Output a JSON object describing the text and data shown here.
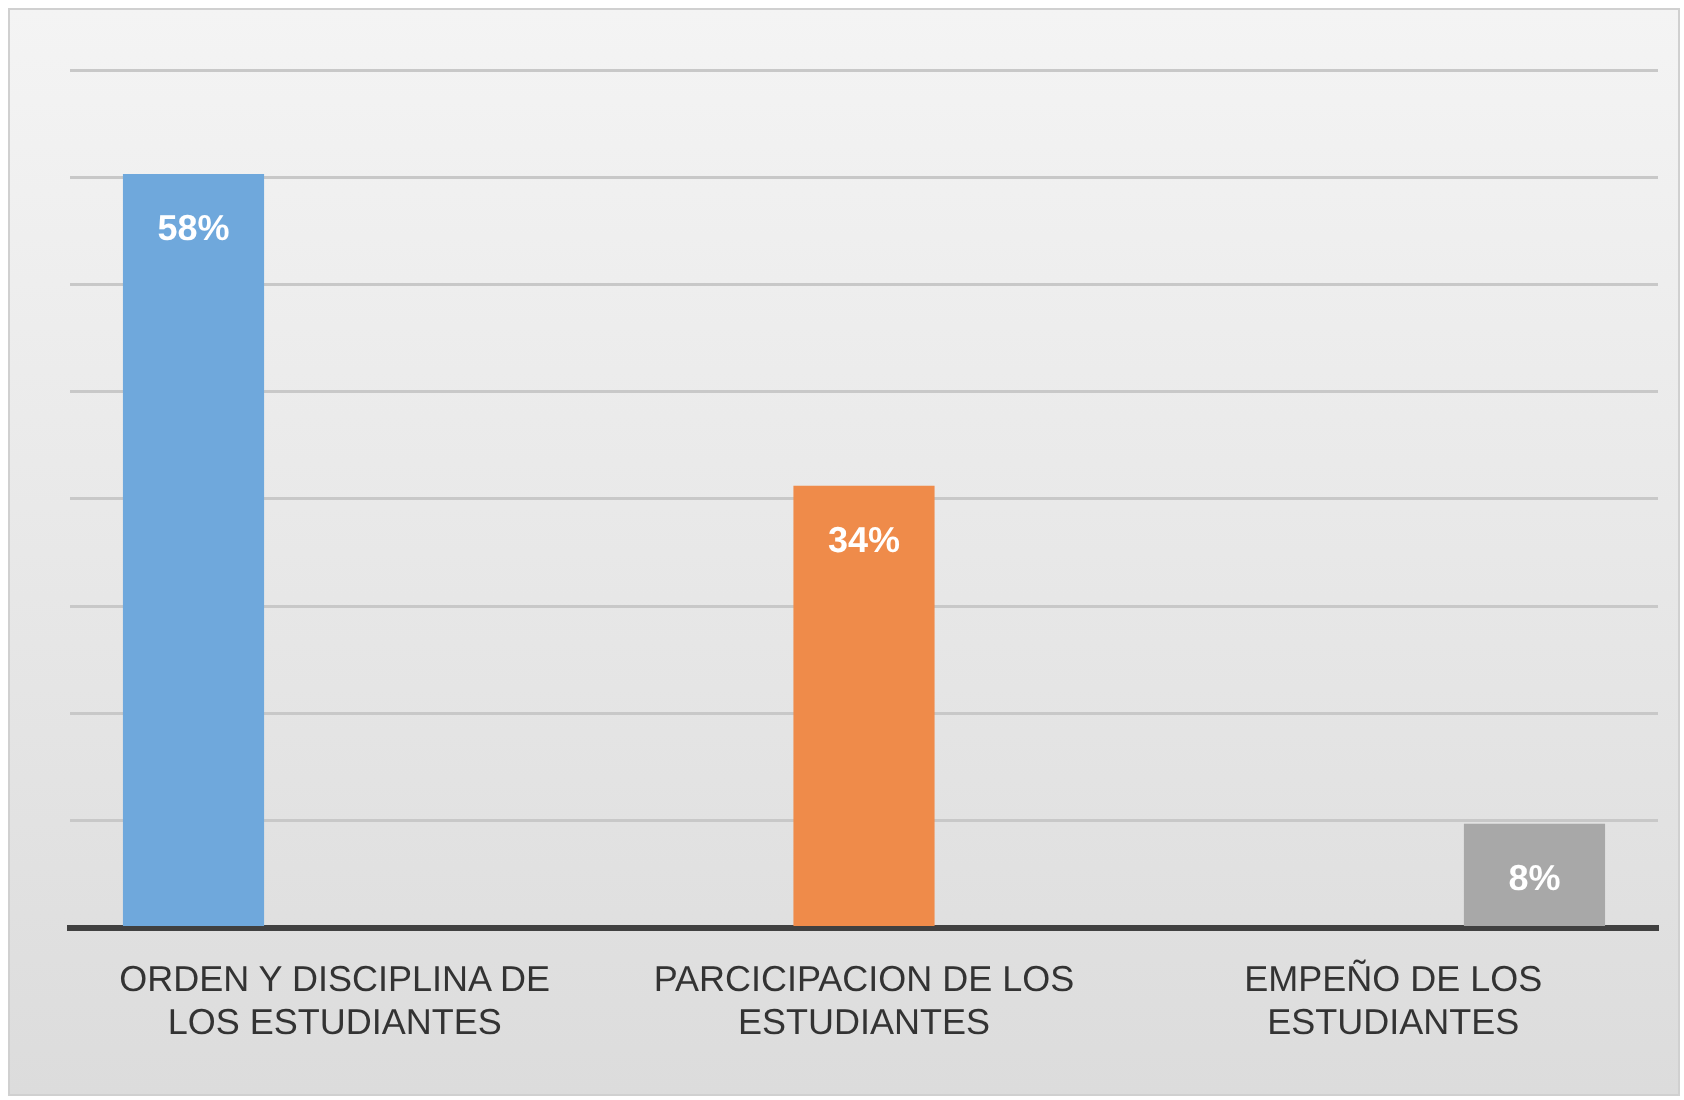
{
  "chart_data": {
    "type": "bar",
    "categories": [
      "ORDEN Y DISCIPLINA DE LOS ESTUDIANTES",
      "PARCICIPACION DE LOS ESTUDIANTES",
      "EMPEÑO DE LOS ESTUDIANTES"
    ],
    "series": [
      {
        "color": "#6fa8dc",
        "values": [
          58,
          null,
          null
        ],
        "value_labels": [
          "58%",
          null,
          null
        ]
      },
      {
        "color": "#ef8b4a",
        "values": [
          null,
          34,
          null
        ],
        "value_labels": [
          null,
          "34%",
          null
        ]
      },
      {
        "color": "#a8a8a8",
        "values": [
          null,
          null,
          8
        ],
        "value_labels": [
          null,
          null,
          "8%"
        ]
      }
    ],
    "ylim": [
      0,
      66
    ],
    "yticks": [
      {
        "value": 0,
        "label": null
      },
      {
        "value": 8.25,
        "label": null
      },
      {
        "value": 16.5,
        "label": null
      },
      {
        "value": 24.75,
        "label": null
      },
      {
        "value": 33,
        "label": null
      },
      {
        "value": 41.25,
        "label": null
      },
      {
        "value": 49.5,
        "label": null
      },
      {
        "value": 57.75,
        "label": null
      },
      {
        "value": 66,
        "label": null
      }
    ],
    "grid": "y",
    "legend": false,
    "tick_labels": "x"
  }
}
